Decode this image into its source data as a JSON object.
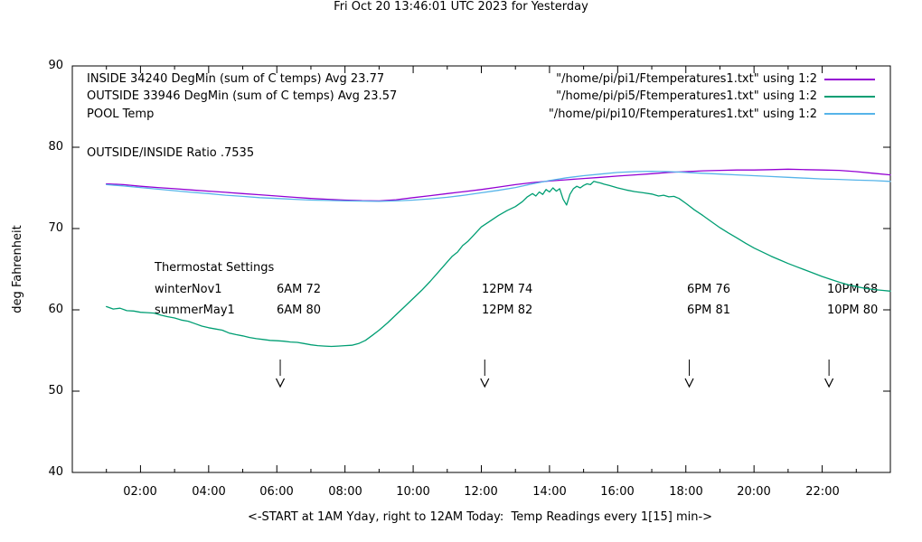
{
  "title": "Fri Oct 20 13:46:01 UTC 2023 for Yesterday",
  "y_axis": {
    "label": "deg Fahrenheit",
    "ticks": [
      "90",
      "80",
      "70",
      "60",
      "50",
      "40"
    ]
  },
  "x_axis": {
    "label": "<-START at 1AM Yday, right to 12AM Today:  Temp Readings every 1[15] min->",
    "ticks": [
      "02:00",
      "04:00",
      "06:00",
      "08:00",
      "10:00",
      "12:00",
      "14:00",
      "16:00",
      "18:00",
      "20:00",
      "22:00"
    ]
  },
  "legend": {
    "left": [
      "INSIDE 34240 DegMin (sum of C temps) Avg 23.77",
      "OUTSIDE 33946 DegMin (sum of C temps) Avg 23.57",
      "POOL Temp"
    ],
    "right": [
      {
        "label": "\"/home/pi/pi1/Ftemperatures1.txt\" using 1:2",
        "color": "#9400D3"
      },
      {
        "label": "\"/home/pi/pi5/Ftemperatures1.txt\" using 1:2",
        "color": "#009E73"
      },
      {
        "label": "\"/home/pi/pi10/Ftemperatures1.txt\" using 1:2",
        "color": "#56B4E9"
      }
    ]
  },
  "annotations": {
    "ratio": "OUTSIDE/INSIDE Ratio .7535",
    "thermostat": {
      "title": "Thermostat Settings",
      "rows": [
        {
          "name": "winterNov1",
          "c1": "6AM 72",
          "c2": "12PM 74",
          "c3": "6PM 76",
          "c4": "10PM 68"
        },
        {
          "name": "summerMay1",
          "c1": "6AM 80",
          "c2": "12PM 82",
          "c3": "6PM 81",
          "c4": "10PM 80"
        }
      ]
    }
  },
  "chart_data": {
    "type": "line",
    "title": "Fri Oct 20 13:46:01 UTC 2023 for Yesterday",
    "xlabel": "<-START at 1AM Yday, right to 12AM Today:  Temp Readings every 1[15] min->",
    "ylabel": "deg Fahrenheit",
    "xlim": [
      0,
      24
    ],
    "ylim": [
      40,
      90
    ],
    "x_unit": "hour of day, data from 01:00 yesterday to 24:00",
    "grid": false,
    "legend_position": "top",
    "xtick_hours": [
      2,
      4,
      6,
      8,
      10,
      12,
      14,
      16,
      18,
      20,
      22
    ],
    "event_arrows_hours": [
      6.1,
      12.1,
      18.1,
      22.2
    ],
    "series": [
      {
        "name": "INSIDE",
        "legend_label": "\"/home/pi/pi1/Ftemperatures1.txt\" using 1:2",
        "color": "#9400D3",
        "points": [
          [
            1,
            75.5
          ],
          [
            1.5,
            75.4
          ],
          [
            2,
            75.2
          ],
          [
            2.5,
            75.05
          ],
          [
            3,
            74.9
          ],
          [
            3.5,
            74.75
          ],
          [
            4,
            74.6
          ],
          [
            4.5,
            74.45
          ],
          [
            5,
            74.3
          ],
          [
            5.5,
            74.15
          ],
          [
            6,
            74.0
          ],
          [
            6.5,
            73.85
          ],
          [
            7,
            73.7
          ],
          [
            7.5,
            73.6
          ],
          [
            8,
            73.5
          ],
          [
            8.5,
            73.42
          ],
          [
            9,
            73.4
          ],
          [
            9.5,
            73.55
          ],
          [
            10,
            73.8
          ],
          [
            10.5,
            74.05
          ],
          [
            11,
            74.3
          ],
          [
            11.5,
            74.55
          ],
          [
            12,
            74.8
          ],
          [
            12.5,
            75.1
          ],
          [
            13,
            75.4
          ],
          [
            13.5,
            75.65
          ],
          [
            14,
            75.85
          ],
          [
            14.5,
            76.0
          ],
          [
            15,
            76.15
          ],
          [
            15.5,
            76.3
          ],
          [
            16,
            76.45
          ],
          [
            16.5,
            76.6
          ],
          [
            17,
            76.75
          ],
          [
            17.5,
            76.9
          ],
          [
            18,
            77.0
          ],
          [
            18.5,
            77.1
          ],
          [
            19,
            77.15
          ],
          [
            19.5,
            77.2
          ],
          [
            20,
            77.2
          ],
          [
            20.5,
            77.25
          ],
          [
            21,
            77.3
          ],
          [
            21.5,
            77.25
          ],
          [
            22,
            77.2
          ],
          [
            22.5,
            77.15
          ],
          [
            23,
            77.0
          ],
          [
            23.5,
            76.8
          ],
          [
            24,
            76.6
          ]
        ]
      },
      {
        "name": "OUTSIDE",
        "legend_label": "\"/home/pi/pi5/Ftemperatures1.txt\" using 1:2",
        "color": "#009E73",
        "points": [
          [
            1,
            60.4
          ],
          [
            1.2,
            60.1
          ],
          [
            1.4,
            60.2
          ],
          [
            1.6,
            59.9
          ],
          [
            1.8,
            59.85
          ],
          [
            2,
            59.7
          ],
          [
            2.2,
            59.65
          ],
          [
            2.4,
            59.6
          ],
          [
            2.6,
            59.35
          ],
          [
            2.8,
            59.15
          ],
          [
            3,
            59.0
          ],
          [
            3.2,
            58.75
          ],
          [
            3.4,
            58.6
          ],
          [
            3.6,
            58.3
          ],
          [
            3.8,
            58.0
          ],
          [
            4,
            57.8
          ],
          [
            4.2,
            57.65
          ],
          [
            4.4,
            57.5
          ],
          [
            4.6,
            57.15
          ],
          [
            4.8,
            56.95
          ],
          [
            5,
            56.8
          ],
          [
            5.2,
            56.6
          ],
          [
            5.4,
            56.45
          ],
          [
            5.6,
            56.35
          ],
          [
            5.8,
            56.25
          ],
          [
            6,
            56.2
          ],
          [
            6.2,
            56.15
          ],
          [
            6.4,
            56.05
          ],
          [
            6.6,
            56.0
          ],
          [
            6.8,
            55.85
          ],
          [
            7,
            55.7
          ],
          [
            7.2,
            55.6
          ],
          [
            7.4,
            55.55
          ],
          [
            7.6,
            55.5
          ],
          [
            7.8,
            55.55
          ],
          [
            8,
            55.6
          ],
          [
            8.2,
            55.65
          ],
          [
            8.4,
            55.85
          ],
          [
            8.6,
            56.25
          ],
          [
            8.8,
            56.85
          ],
          [
            9,
            57.5
          ],
          [
            9.25,
            58.4
          ],
          [
            9.5,
            59.4
          ],
          [
            9.75,
            60.4
          ],
          [
            10,
            61.4
          ],
          [
            10.25,
            62.4
          ],
          [
            10.5,
            63.5
          ],
          [
            10.75,
            64.7
          ],
          [
            11,
            65.9
          ],
          [
            11.15,
            66.6
          ],
          [
            11.3,
            67.1
          ],
          [
            11.45,
            67.9
          ],
          [
            11.6,
            68.4
          ],
          [
            11.8,
            69.3
          ],
          [
            12,
            70.2
          ],
          [
            12.25,
            70.9
          ],
          [
            12.5,
            71.6
          ],
          [
            12.75,
            72.2
          ],
          [
            13,
            72.7
          ],
          [
            13.2,
            73.3
          ],
          [
            13.35,
            73.9
          ],
          [
            13.5,
            74.3
          ],
          [
            13.6,
            74.0
          ],
          [
            13.7,
            74.5
          ],
          [
            13.8,
            74.2
          ],
          [
            13.9,
            74.8
          ],
          [
            14,
            74.5
          ],
          [
            14.1,
            75.0
          ],
          [
            14.2,
            74.6
          ],
          [
            14.3,
            74.9
          ],
          [
            14.4,
            73.6
          ],
          [
            14.5,
            72.9
          ],
          [
            14.6,
            74.2
          ],
          [
            14.7,
            74.9
          ],
          [
            14.8,
            75.2
          ],
          [
            14.9,
            75.0
          ],
          [
            15,
            75.3
          ],
          [
            15.1,
            75.5
          ],
          [
            15.2,
            75.4
          ],
          [
            15.3,
            75.8
          ],
          [
            15.4,
            75.7
          ],
          [
            15.5,
            75.6
          ],
          [
            15.6,
            75.45
          ],
          [
            15.75,
            75.3
          ],
          [
            16,
            75.0
          ],
          [
            16.25,
            74.75
          ],
          [
            16.5,
            74.55
          ],
          [
            16.75,
            74.4
          ],
          [
            17,
            74.25
          ],
          [
            17.2,
            74.0
          ],
          [
            17.35,
            74.1
          ],
          [
            17.5,
            73.9
          ],
          [
            17.65,
            73.95
          ],
          [
            17.8,
            73.7
          ],
          [
            18,
            73.1
          ],
          [
            18.25,
            72.3
          ],
          [
            18.5,
            71.6
          ],
          [
            18.75,
            70.85
          ],
          [
            19,
            70.1
          ],
          [
            19.25,
            69.45
          ],
          [
            19.5,
            68.85
          ],
          [
            19.75,
            68.2
          ],
          [
            20,
            67.6
          ],
          [
            20.25,
            67.1
          ],
          [
            20.5,
            66.6
          ],
          [
            20.75,
            66.15
          ],
          [
            21,
            65.7
          ],
          [
            21.25,
            65.3
          ],
          [
            21.5,
            64.9
          ],
          [
            21.75,
            64.5
          ],
          [
            22,
            64.1
          ],
          [
            22.25,
            63.75
          ],
          [
            22.5,
            63.4
          ],
          [
            22.75,
            63.1
          ],
          [
            23,
            62.85
          ],
          [
            23.25,
            62.65
          ],
          [
            23.5,
            62.5
          ],
          [
            23.75,
            62.4
          ],
          [
            24,
            62.3
          ]
        ]
      },
      {
        "name": "POOL Temp",
        "legend_label": "\"/home/pi/pi10/Ftemperatures1.txt\" using 1:2",
        "color": "#56B4E9",
        "points": [
          [
            1,
            75.4
          ],
          [
            1.5,
            75.25
          ],
          [
            2,
            75.05
          ],
          [
            2.5,
            74.85
          ],
          [
            3,
            74.65
          ],
          [
            3.5,
            74.45
          ],
          [
            4,
            74.3
          ],
          [
            4.5,
            74.1
          ],
          [
            5,
            73.95
          ],
          [
            5.5,
            73.8
          ],
          [
            6,
            73.7
          ],
          [
            6.5,
            73.6
          ],
          [
            7,
            73.5
          ],
          [
            7.5,
            73.45
          ],
          [
            8,
            73.4
          ],
          [
            8.5,
            73.38
          ],
          [
            9,
            73.35
          ],
          [
            9.5,
            73.4
          ],
          [
            10,
            73.5
          ],
          [
            10.5,
            73.65
          ],
          [
            11,
            73.85
          ],
          [
            11.5,
            74.1
          ],
          [
            12,
            74.4
          ],
          [
            12.5,
            74.7
          ],
          [
            13,
            75.05
          ],
          [
            13.5,
            75.5
          ],
          [
            14,
            75.9
          ],
          [
            14.5,
            76.25
          ],
          [
            15,
            76.5
          ],
          [
            15.5,
            76.7
          ],
          [
            16,
            76.9
          ],
          [
            16.5,
            77.0
          ],
          [
            17,
            77.05
          ],
          [
            17.5,
            77.0
          ],
          [
            18,
            76.9
          ],
          [
            18.5,
            76.8
          ],
          [
            19,
            76.7
          ],
          [
            19.5,
            76.6
          ],
          [
            20,
            76.5
          ],
          [
            20.5,
            76.4
          ],
          [
            21,
            76.3
          ],
          [
            21.5,
            76.2
          ],
          [
            22,
            76.1
          ],
          [
            22.5,
            76.05
          ],
          [
            23,
            75.95
          ],
          [
            23.5,
            75.9
          ],
          [
            24,
            75.8
          ]
        ]
      }
    ]
  }
}
